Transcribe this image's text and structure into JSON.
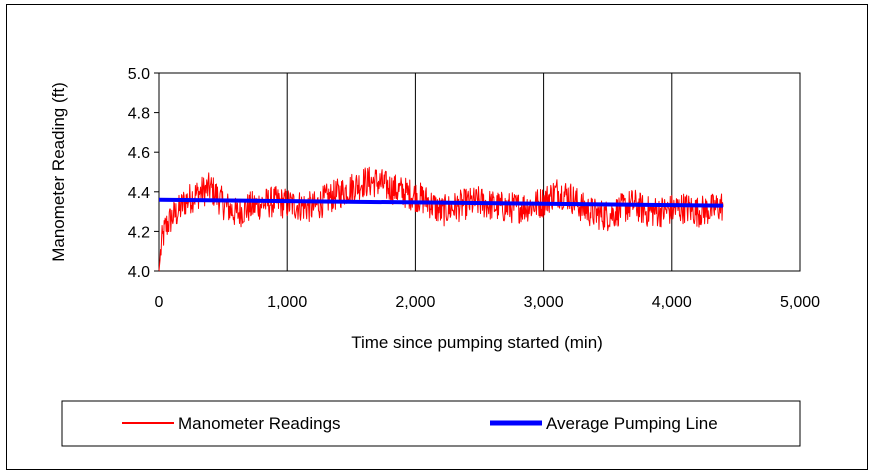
{
  "chart_data": {
    "type": "line",
    "xlabel": "Time since pumping started (min)",
    "ylabel": "Manometer Reading (ft)",
    "xlim": [
      0,
      5000
    ],
    "ylim": [
      4.0,
      5.0
    ],
    "x_ticks": [
      "0",
      "1,000",
      "2,000",
      "3,000",
      "4,000",
      "5,000"
    ],
    "y_ticks": [
      "4.0",
      "4.2",
      "4.4",
      "4.6",
      "4.8",
      "5.0"
    ],
    "grid": "vertical",
    "legend_position": "bottom",
    "series": [
      {
        "name": "Manometer Readings",
        "color": "#ff0000",
        "x": [
          0,
          20,
          50,
          100,
          150,
          200,
          300,
          400,
          500,
          600,
          700,
          800,
          900,
          1000,
          1100,
          1200,
          1300,
          1400,
          1500,
          1600,
          1700,
          1800,
          1900,
          2000,
          2100,
          2200,
          2300,
          2400,
          2500,
          2600,
          2700,
          2800,
          2900,
          3000,
          3100,
          3200,
          3300,
          3400,
          3500,
          3600,
          3700,
          3800,
          3900,
          4000,
          4100,
          4200,
          4300,
          4400
        ],
        "values": [
          4.0,
          4.14,
          4.22,
          4.27,
          4.3,
          4.35,
          4.39,
          4.42,
          4.34,
          4.29,
          4.32,
          4.34,
          4.35,
          4.34,
          4.33,
          4.32,
          4.36,
          4.39,
          4.42,
          4.45,
          4.45,
          4.42,
          4.4,
          4.38,
          4.35,
          4.3,
          4.32,
          4.34,
          4.35,
          4.33,
          4.32,
          4.32,
          4.33,
          4.35,
          4.4,
          4.38,
          4.32,
          4.29,
          4.28,
          4.31,
          4.34,
          4.3,
          4.3,
          4.31,
          4.32,
          4.3,
          4.31,
          4.33
        ]
      },
      {
        "name": "Average Pumping Line",
        "color": "#0000ff",
        "x": [
          0,
          4400
        ],
        "values": [
          4.36,
          4.33
        ]
      }
    ]
  }
}
